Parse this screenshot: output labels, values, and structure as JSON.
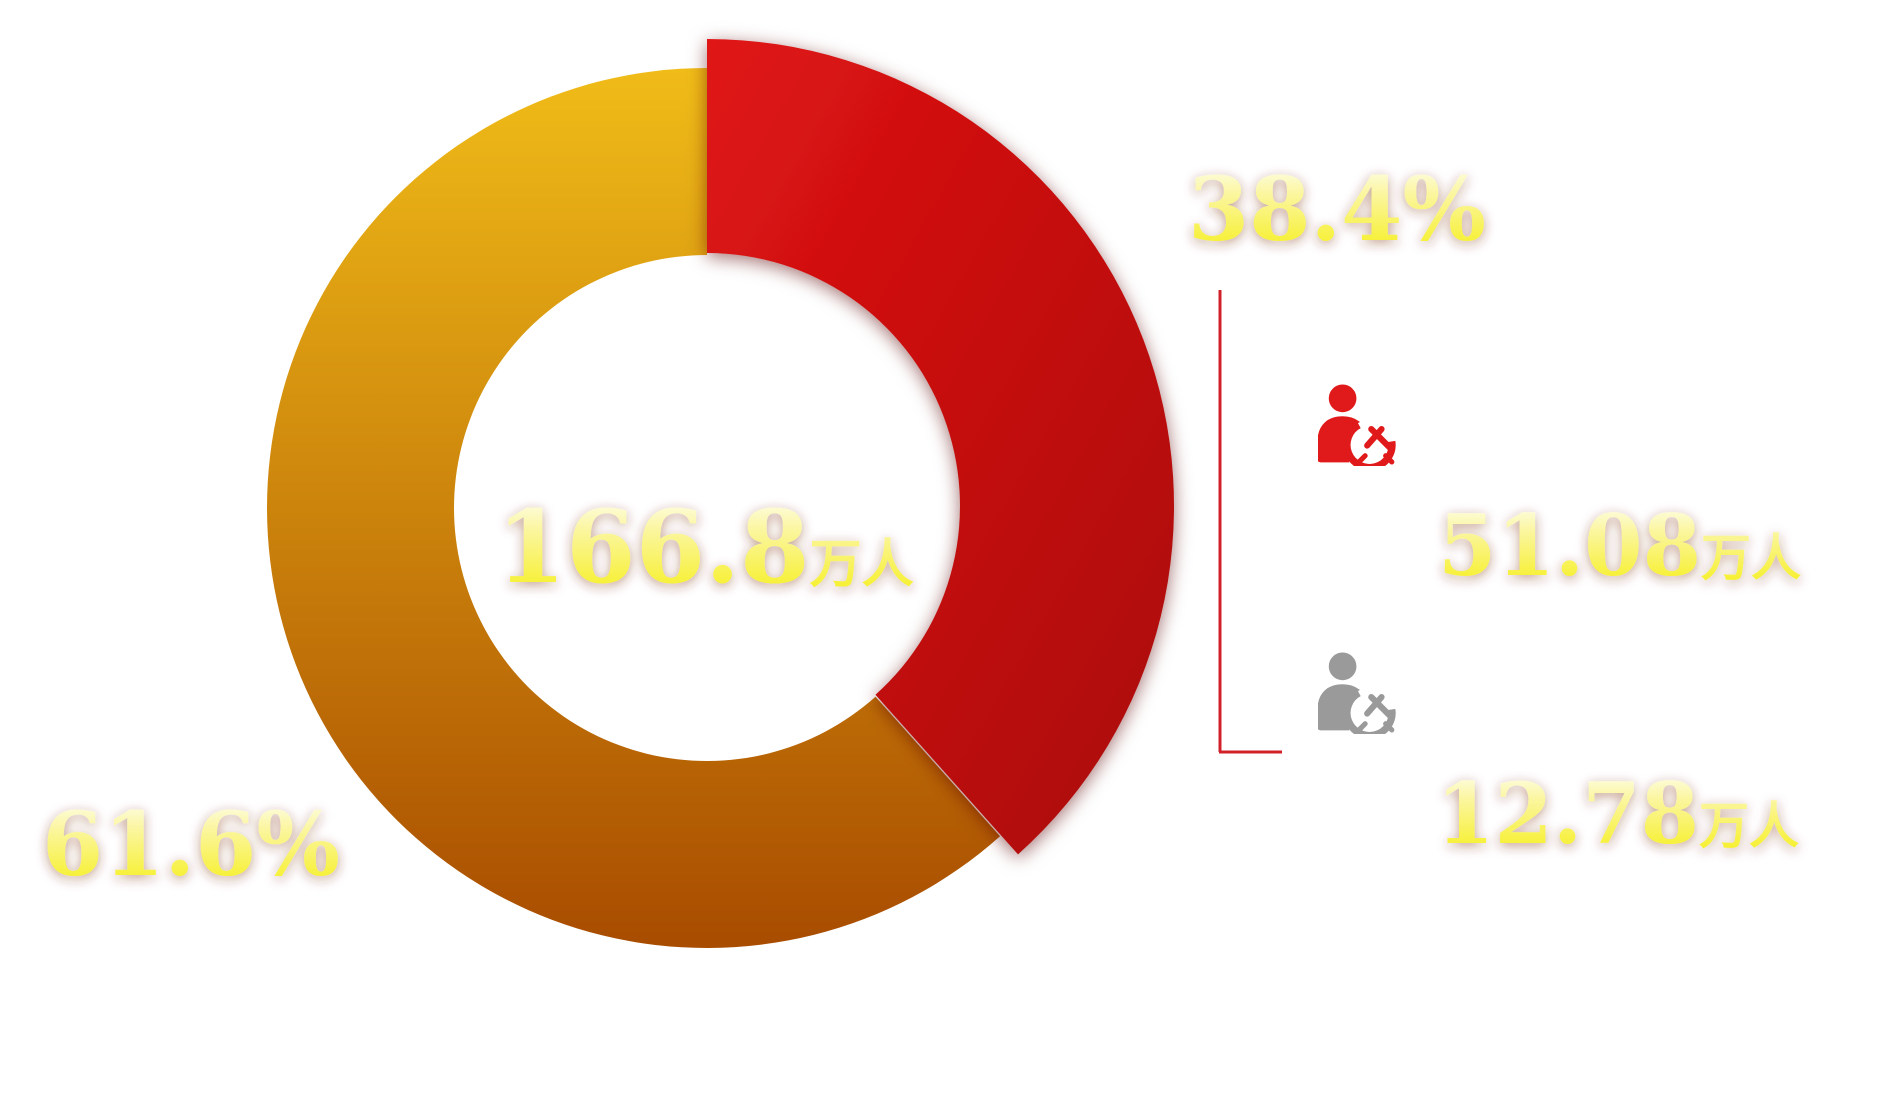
{
  "chart_data": {
    "type": "pie",
    "variant": "donut",
    "center_label": {
      "value": "166.8",
      "unit": "万人"
    },
    "slices": [
      {
        "percent_label": "38.4%",
        "value": 38.4,
        "color": "#c8101a"
      },
      {
        "percent_label": "61.6%",
        "value": 61.6,
        "color": "#d99010"
      }
    ],
    "breakdown": [
      {
        "icon": "party-member-icon",
        "color": "#e01a1a",
        "value": "51.08",
        "unit": "万人"
      },
      {
        "icon": "party-member-icon",
        "color": "#9a9a9a",
        "value": "12.78",
        "unit": "万人"
      }
    ],
    "colors": {
      "highlight_top": "#e01414",
      "highlight_bottom": "#aa0808",
      "rest_top": "#f0bc18",
      "rest_bottom": "#a84c00",
      "text_top": "#ffffff",
      "text_bottom": "#f5ee10",
      "bracket": "#d0202a"
    }
  }
}
